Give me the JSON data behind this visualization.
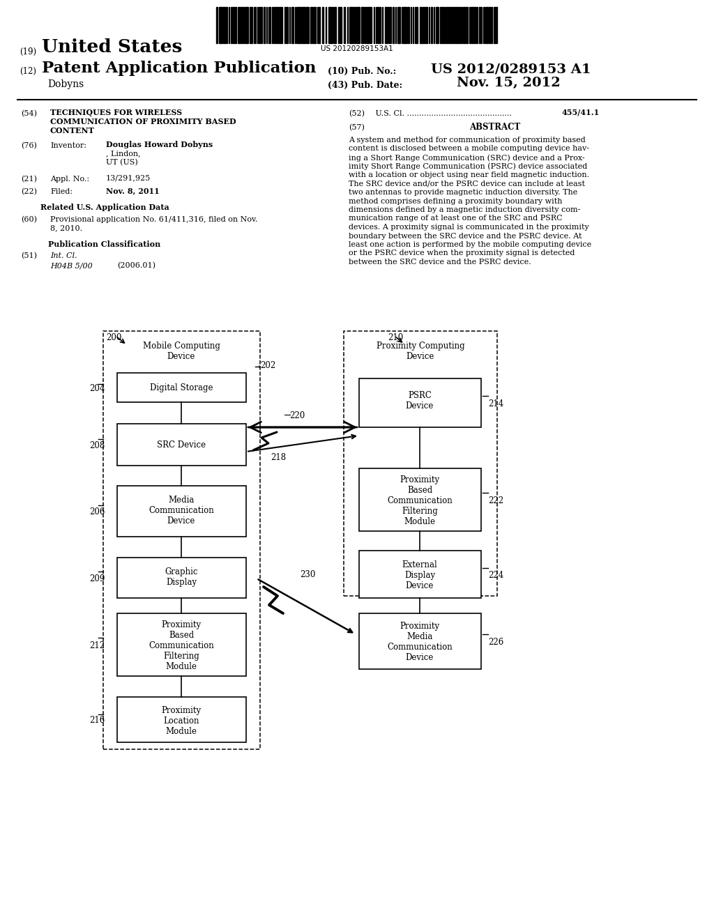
{
  "bg_color": "#ffffff",
  "barcode_text": "US 20120289153A1",
  "abstract_text_lines": [
    "A system and method for communication of proximity based",
    "content is disclosed between a mobile computing device hav-",
    "ing a Short Range Communication (SRC) device and a Prox-",
    "imity Short Range Communication (PSRC) device associated",
    "with a location or object using near field magnetic induction.",
    "The SRC device and/or the PSRC device can include at least",
    "two antennas to provide magnetic induction diversity. The",
    "method comprises defining a proximity boundary with",
    "dimensions defined by a magnetic induction diversity com-",
    "munication range of at least one of the SRC and PSRC",
    "devices. A proximity signal is communicated in the proximity",
    "boundary between the SRC device and the PSRC device. At",
    "least one action is performed by the mobile computing device",
    "or the PSRC device when the proximity signal is detected",
    "between the SRC device and the PSRC device."
  ]
}
